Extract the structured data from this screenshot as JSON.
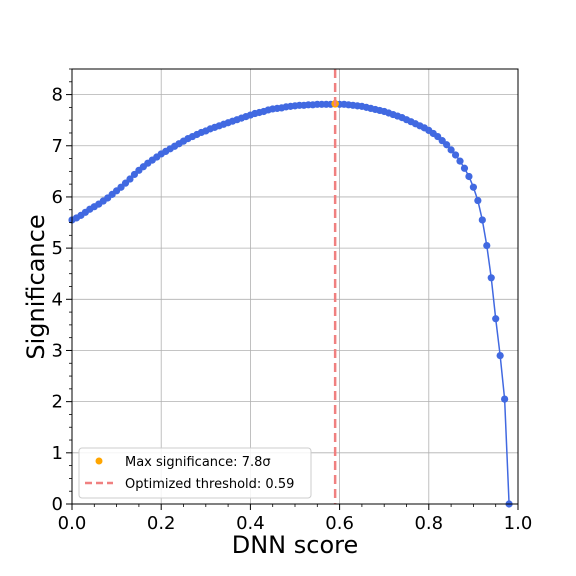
{
  "chart_data": {
    "type": "line",
    "xlabel": "DNN score",
    "ylabel": "Significance",
    "xlim": [
      0.0,
      1.0
    ],
    "ylim": [
      0.0,
      8.5
    ],
    "xticks": [
      "0.0",
      "0.2",
      "0.4",
      "0.6",
      "0.8",
      "1.0"
    ],
    "yticks": [
      "0",
      "1",
      "2",
      "3",
      "4",
      "5",
      "6",
      "7",
      "8"
    ],
    "grid": true,
    "legend_position": "lower-left",
    "series": [
      {
        "color": "#4169e1",
        "x": [
          0.0,
          0.01,
          0.02,
          0.03,
          0.04,
          0.05,
          0.06,
          0.07,
          0.08,
          0.09,
          0.1,
          0.11,
          0.12,
          0.13,
          0.14,
          0.15,
          0.16,
          0.17,
          0.18,
          0.19,
          0.2,
          0.21,
          0.22,
          0.23,
          0.24,
          0.25,
          0.26,
          0.27,
          0.28,
          0.29,
          0.3,
          0.31,
          0.32,
          0.33,
          0.34,
          0.35,
          0.36,
          0.37,
          0.38,
          0.39,
          0.4,
          0.41,
          0.42,
          0.43,
          0.44,
          0.45,
          0.46,
          0.47,
          0.48,
          0.49,
          0.5,
          0.51,
          0.52,
          0.53,
          0.54,
          0.55,
          0.56,
          0.57,
          0.58,
          0.59,
          0.6,
          0.61,
          0.62,
          0.63,
          0.64,
          0.65,
          0.66,
          0.67,
          0.68,
          0.69,
          0.7,
          0.71,
          0.72,
          0.73,
          0.74,
          0.75,
          0.76,
          0.77,
          0.78,
          0.79,
          0.8,
          0.81,
          0.82,
          0.83,
          0.84,
          0.85,
          0.86,
          0.87,
          0.88,
          0.89,
          0.9,
          0.91,
          0.92,
          0.93,
          0.94,
          0.95,
          0.96,
          0.97,
          0.98
        ],
        "y": [
          5.55,
          5.59,
          5.64,
          5.7,
          5.76,
          5.81,
          5.86,
          5.92,
          5.98,
          6.05,
          6.12,
          6.19,
          6.27,
          6.35,
          6.44,
          6.52,
          6.59,
          6.66,
          6.72,
          6.78,
          6.84,
          6.89,
          6.94,
          6.99,
          7.04,
          7.09,
          7.14,
          7.18,
          7.22,
          7.26,
          7.29,
          7.33,
          7.36,
          7.39,
          7.42,
          7.45,
          7.48,
          7.51,
          7.54,
          7.57,
          7.6,
          7.63,
          7.65,
          7.67,
          7.7,
          7.72,
          7.73,
          7.74,
          7.76,
          7.77,
          7.78,
          7.79,
          7.79,
          7.8,
          7.8,
          7.81,
          7.81,
          7.81,
          7.81,
          7.82,
          7.81,
          7.81,
          7.8,
          7.79,
          7.78,
          7.77,
          7.75,
          7.73,
          7.71,
          7.69,
          7.67,
          7.64,
          7.61,
          7.58,
          7.55,
          7.51,
          7.47,
          7.43,
          7.39,
          7.35,
          7.3,
          7.24,
          7.18,
          7.1,
          7.02,
          6.92,
          6.82,
          6.7,
          6.56,
          6.4,
          6.19,
          5.93,
          5.55,
          5.05,
          4.42,
          3.62,
          2.9,
          2.05,
          0.0
        ]
      }
    ],
    "max_point": {
      "x": 0.59,
      "y": 7.82,
      "color": "#ffa500"
    },
    "threshold": {
      "x": 0.59,
      "color": "#f08080"
    },
    "legend": [
      {
        "label": "Max significance: 7.8σ",
        "marker": "dot",
        "color": "#ffa500"
      },
      {
        "label": "Optimized threshold: 0.59",
        "marker": "dashed-line",
        "color": "#f08080"
      }
    ]
  }
}
